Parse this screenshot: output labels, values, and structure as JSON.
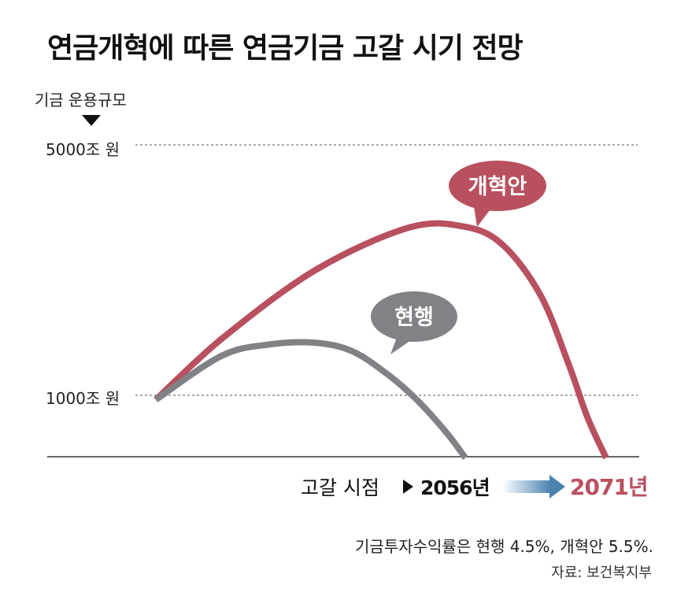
{
  "title": "연금개혁에 따른 연금기금 고갈 시기 전망",
  "y_axis_label": "기금 운용규모",
  "y_ticks": [
    "5000조 원",
    "1000조 원"
  ],
  "depletion": {
    "label": "고갈 시점",
    "current_year": "2056년",
    "reform_year": "2071년"
  },
  "footnote": "기금투자수익률은 현행 4.5%, 개혁안 5.5%.",
  "source": "자료: 보건복지부",
  "colors": {
    "reform": "#b9505f",
    "current": "#808285",
    "arrow": "#4a82b0"
  },
  "chart_data": {
    "type": "line",
    "ylabel": "기금 운용규모",
    "yticks": [
      {
        "label": "5000조 원",
        "value": 5000
      },
      {
        "label": "1000조 원",
        "value": 1000
      }
    ],
    "ylim": [
      0,
      5200
    ],
    "grid": true,
    "series": [
      {
        "name": "개혁안",
        "color": "#b9505f",
        "bubble": true,
        "depletion_year": 2071,
        "x": [
          2023,
          2030,
          2040,
          2050,
          2056,
          2060,
          2064,
          2067,
          2069,
          2071
        ],
        "values": [
          930,
          1900,
          3000,
          3680,
          3690,
          3400,
          2600,
          1500,
          650,
          0
        ]
      },
      {
        "name": "현행",
        "color": "#808285",
        "bubble": true,
        "depletion_year": 2056,
        "x": [
          2023,
          2030,
          2035,
          2040,
          2044,
          2048,
          2051,
          2054,
          2056
        ],
        "values": [
          930,
          1630,
          1810,
          1840,
          1700,
          1300,
          900,
          400,
          0
        ]
      }
    ]
  }
}
